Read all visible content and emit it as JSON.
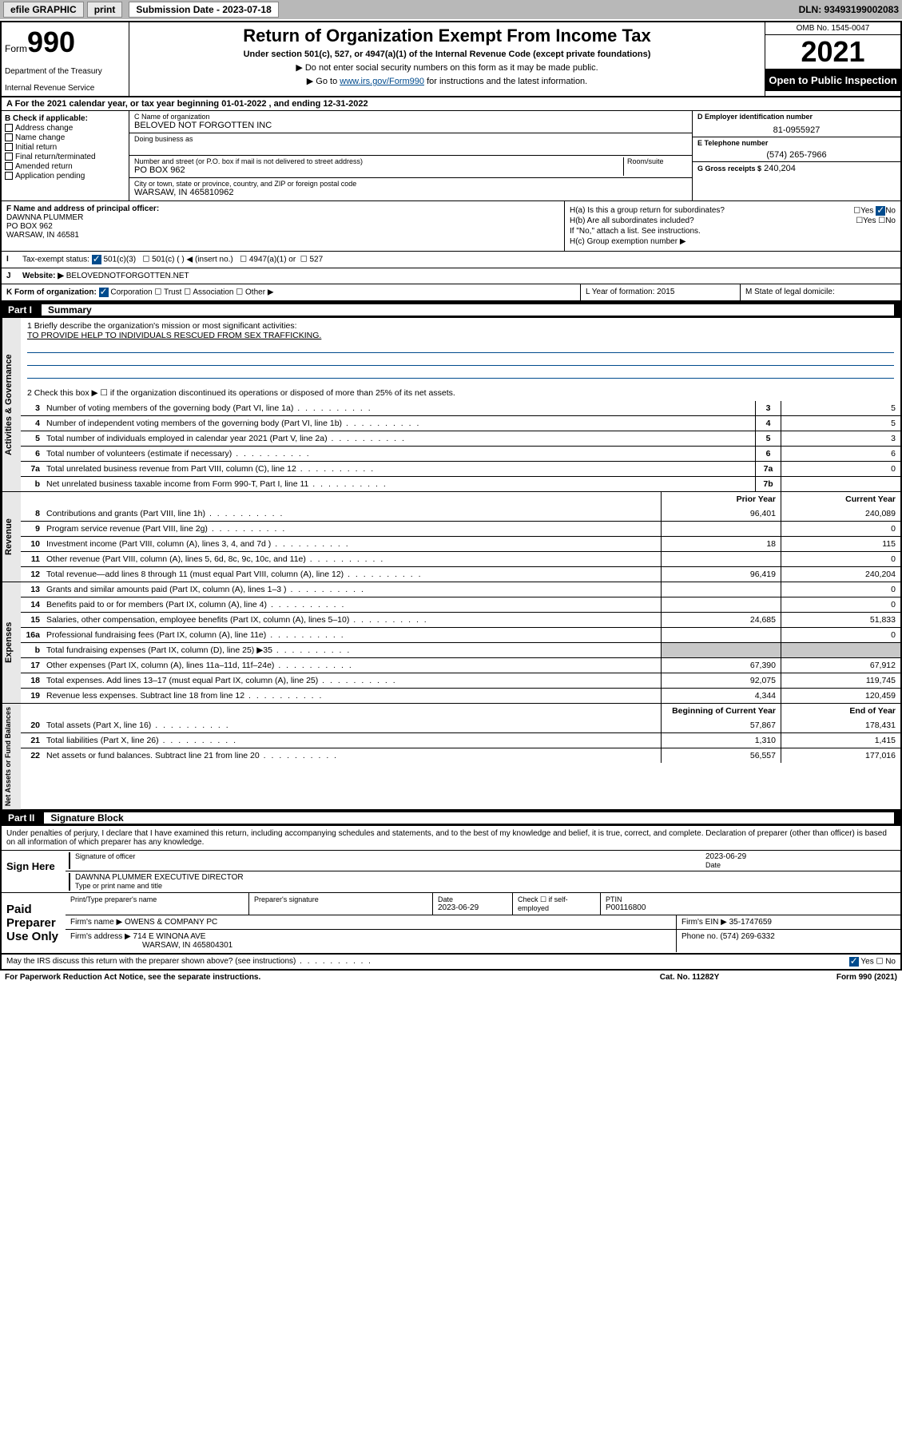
{
  "topbar": {
    "efile": "efile GRAPHIC",
    "print": "print",
    "sub_label": "Submission Date - 2023-07-18",
    "dln": "DLN: 93493199002083"
  },
  "header": {
    "form_prefix": "Form",
    "form_num": "990",
    "dept": "Department of the Treasury",
    "irs": "Internal Revenue Service",
    "title": "Return of Organization Exempt From Income Tax",
    "sub1": "Under section 501(c), 527, or 4947(a)(1) of the Internal Revenue Code (except private foundations)",
    "sub2": "▶ Do not enter social security numbers on this form as it may be made public.",
    "sub3_pre": "▶ Go to ",
    "sub3_link": "www.irs.gov/Form990",
    "sub3_post": " for instructions and the latest information.",
    "omb": "OMB No. 1545-0047",
    "year": "2021",
    "open": "Open to Public Inspection"
  },
  "row_a": "For the 2021 calendar year, or tax year beginning 01-01-2022  , and ending 12-31-2022",
  "col_b": {
    "label": "B Check if applicable:",
    "opts": [
      "Address change",
      "Name change",
      "Initial return",
      "Final return/terminated",
      "Amended return",
      "Application pending"
    ]
  },
  "col_c": {
    "name_lbl": "C Name of organization",
    "name": "BELOVED NOT FORGOTTEN INC",
    "dba_lbl": "Doing business as",
    "dba": "",
    "addr_lbl": "Number and street (or P.O. box if mail is not delivered to street address)",
    "room_lbl": "Room/suite",
    "addr": "PO BOX 962",
    "city_lbl": "City or town, state or province, country, and ZIP or foreign postal code",
    "city": "WARSAW, IN  465810962"
  },
  "col_d": {
    "ein_lbl": "D Employer identification number",
    "ein": "81-0955927",
    "tel_lbl": "E Telephone number",
    "tel": "(574) 265-7966",
    "gross_lbl": "G Gross receipts $",
    "gross": "240,204"
  },
  "col_f": {
    "lbl": "F Name and address of principal officer:",
    "name": "DAWNNA PLUMMER",
    "addr1": "PO BOX 962",
    "addr2": "WARSAW, IN  46581"
  },
  "col_h": {
    "ha": "H(a)  Is this a group return for subordinates?",
    "hb": "H(b)  Are all subordinates included?",
    "hb2": "If \"No,\" attach a list. See instructions.",
    "hc": "H(c)  Group exemption number ▶"
  },
  "row_i": {
    "lbl": "Tax-exempt status:",
    "o1": "501(c)(3)",
    "o2": "501(c) (  ) ◀ (insert no.)",
    "o3": "4947(a)(1) or",
    "o4": "527"
  },
  "row_j": {
    "lbl": "Website: ▶",
    "val": "BELOVEDNOTFORGOTTEN.NET"
  },
  "row_k": "K Form of organization:",
  "row_k_opts": [
    "Corporation",
    "Trust",
    "Association",
    "Other ▶"
  ],
  "row_l": "L Year of formation: 2015",
  "row_m": "M State of legal domicile:",
  "part1": {
    "num": "Part I",
    "title": "Summary"
  },
  "mission": {
    "line1_lbl": "1  Briefly describe the organization's mission or most significant activities:",
    "line1_val": "TO PROVIDE HELP TO INDIVIDUALS RESCUED FROM SEX TRAFFICKING.",
    "line2": "2  Check this box ▶ ☐  if the organization discontinued its operations or disposed of more than 25% of its net assets."
  },
  "gov_lines": [
    {
      "n": "3",
      "d": "Number of voting members of the governing body (Part VI, line 1a)",
      "b": "3",
      "v": "5"
    },
    {
      "n": "4",
      "d": "Number of independent voting members of the governing body (Part VI, line 1b)",
      "b": "4",
      "v": "5"
    },
    {
      "n": "5",
      "d": "Total number of individuals employed in calendar year 2021 (Part V, line 2a)",
      "b": "5",
      "v": "3"
    },
    {
      "n": "6",
      "d": "Total number of volunteers (estimate if necessary)",
      "b": "6",
      "v": "6"
    },
    {
      "n": "7a",
      "d": "Total unrelated business revenue from Part VIII, column (C), line 12",
      "b": "7a",
      "v": "0"
    },
    {
      "n": "b",
      "d": "Net unrelated business taxable income from Form 990-T, Part I, line 11",
      "b": "7b",
      "v": ""
    }
  ],
  "rev_header": {
    "c1": "Prior Year",
    "c2": "Current Year"
  },
  "rev_lines": [
    {
      "n": "8",
      "d": "Contributions and grants (Part VIII, line 1h)",
      "v1": "96,401",
      "v2": "240,089"
    },
    {
      "n": "9",
      "d": "Program service revenue (Part VIII, line 2g)",
      "v1": "",
      "v2": "0"
    },
    {
      "n": "10",
      "d": "Investment income (Part VIII, column (A), lines 3, 4, and 7d )",
      "v1": "18",
      "v2": "115"
    },
    {
      "n": "11",
      "d": "Other revenue (Part VIII, column (A), lines 5, 6d, 8c, 9c, 10c, and 11e)",
      "v1": "",
      "v2": "0"
    },
    {
      "n": "12",
      "d": "Total revenue—add lines 8 through 11 (must equal Part VIII, column (A), line 12)",
      "v1": "96,419",
      "v2": "240,204"
    }
  ],
  "exp_lines": [
    {
      "n": "13",
      "d": "Grants and similar amounts paid (Part IX, column (A), lines 1–3 )",
      "v1": "",
      "v2": "0"
    },
    {
      "n": "14",
      "d": "Benefits paid to or for members (Part IX, column (A), line 4)",
      "v1": "",
      "v2": "0"
    },
    {
      "n": "15",
      "d": "Salaries, other compensation, employee benefits (Part IX, column (A), lines 5–10)",
      "v1": "24,685",
      "v2": "51,833"
    },
    {
      "n": "16a",
      "d": "Professional fundraising fees (Part IX, column (A), line 11e)",
      "v1": "",
      "v2": "0"
    },
    {
      "n": "b",
      "d": "Total fundraising expenses (Part IX, column (D), line 25) ▶35",
      "v1": "shade",
      "v2": "shade"
    },
    {
      "n": "17",
      "d": "Other expenses (Part IX, column (A), lines 11a–11d, 11f–24e)",
      "v1": "67,390",
      "v2": "67,912"
    },
    {
      "n": "18",
      "d": "Total expenses. Add lines 13–17 (must equal Part IX, column (A), line 25)",
      "v1": "92,075",
      "v2": "119,745"
    },
    {
      "n": "19",
      "d": "Revenue less expenses. Subtract line 18 from line 12",
      "v1": "4,344",
      "v2": "120,459"
    }
  ],
  "net_header": {
    "c1": "Beginning of Current Year",
    "c2": "End of Year"
  },
  "net_lines": [
    {
      "n": "20",
      "d": "Total assets (Part X, line 16)",
      "v1": "57,867",
      "v2": "178,431"
    },
    {
      "n": "21",
      "d": "Total liabilities (Part X, line 26)",
      "v1": "1,310",
      "v2": "1,415"
    },
    {
      "n": "22",
      "d": "Net assets or fund balances. Subtract line 21 from line 20",
      "v1": "56,557",
      "v2": "177,016"
    }
  ],
  "part2": {
    "num": "Part II",
    "title": "Signature Block"
  },
  "penalties": "Under penalties of perjury, I declare that I have examined this return, including accompanying schedules and statements, and to the best of my knowledge and belief, it is true, correct, and complete. Declaration of preparer (other than officer) is based on all information of which preparer has any knowledge.",
  "sign": {
    "lbl": "Sign Here",
    "sig_lbl": "Signature of officer",
    "date_lbl": "Date",
    "date": "2023-06-29",
    "name": "DAWNNA PLUMMER  EXECUTIVE DIRECTOR",
    "name_lbl": "Type or print name and title"
  },
  "prep": {
    "lbl": "Paid Preparer Use Only",
    "h1": "Print/Type preparer's name",
    "h2": "Preparer's signature",
    "h3": "Date",
    "h3v": "2023-06-29",
    "h4": "Check ☐ if self-employed",
    "h5": "PTIN",
    "h5v": "P00116800",
    "firm_lbl": "Firm's name    ▶",
    "firm": "OWENS & COMPANY PC",
    "ein_lbl": "Firm's EIN ▶",
    "ein": "35-1747659",
    "addr_lbl": "Firm's address ▶",
    "addr1": "714 E WINONA AVE",
    "addr2": "WARSAW, IN  465804301",
    "phone_lbl": "Phone no.",
    "phone": "(574) 269-6332"
  },
  "footer": {
    "discuss": "May the IRS discuss this return with the preparer shown above? (see instructions)",
    "paperwork": "For Paperwork Reduction Act Notice, see the separate instructions.",
    "cat": "Cat. No. 11282Y",
    "form": "Form 990 (2021)"
  },
  "side_labels": {
    "gov": "Activities & Governance",
    "rev": "Revenue",
    "exp": "Expenses",
    "net": "Net Assets or Fund Balances"
  }
}
